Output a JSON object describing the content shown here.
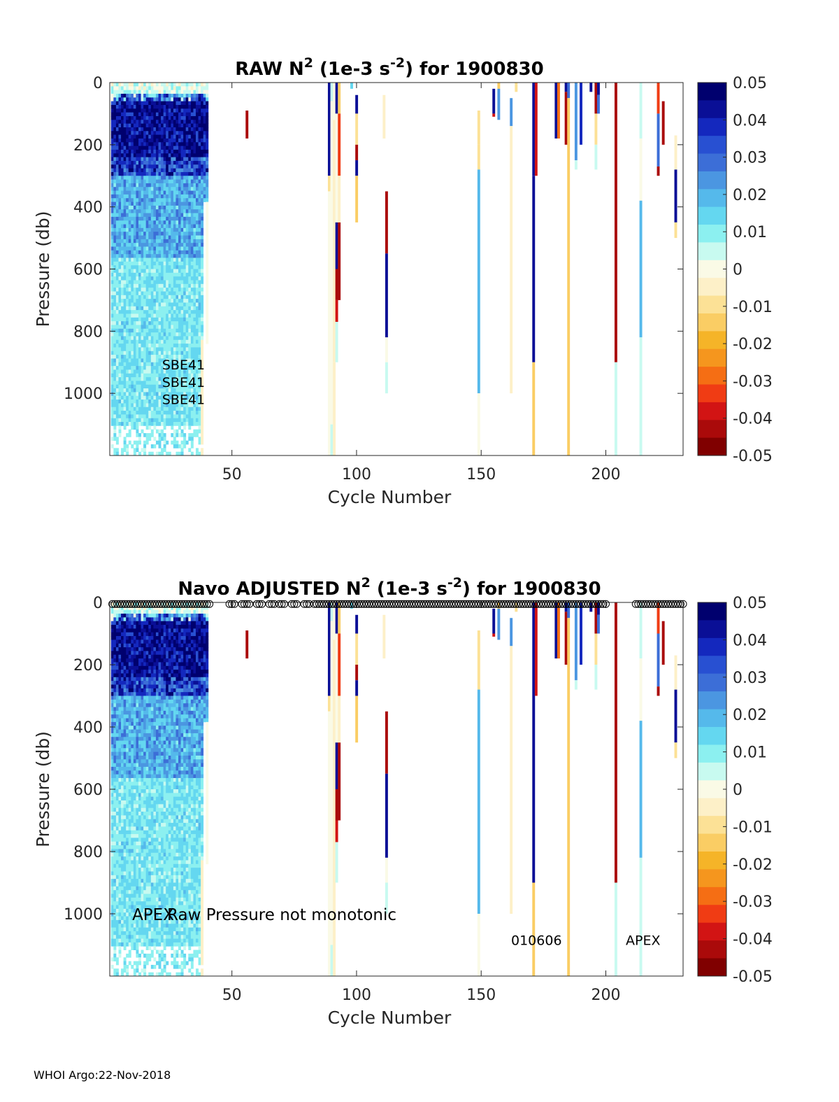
{
  "chart_data": [
    {
      "type": "heatmap",
      "title": {
        "prefix": "RAW N",
        "sup1": "2",
        "mid": " (1e-3 s",
        "sup2": "-2",
        "suffix": ") for 1900830"
      },
      "xlabel": "Cycle Number",
      "ylabel": "Pressure (db)",
      "xlim": [
        1,
        231
      ],
      "ylim": [
        1200,
        0
      ],
      "xticks": [
        "50",
        "100",
        "150",
        "200"
      ],
      "yticks": [
        "0",
        "200",
        "400",
        "600",
        "800",
        "1000"
      ],
      "colorbar": {
        "ticks": [
          "0.05",
          "0.04",
          "0.03",
          "0.02",
          "0.01",
          "0",
          "-0.01",
          "-0.02",
          "-0.03",
          "-0.04",
          "-0.05"
        ],
        "clim": [
          -0.05,
          0.05
        ]
      },
      "annotations": [
        {
          "text": "SBE41",
          "cycle": 22,
          "pressure": 905,
          "size": 19
        },
        {
          "text": "SBE41",
          "cycle": 22,
          "pressure": 961,
          "size": 19
        },
        {
          "text": "SBE41",
          "cycle": 22,
          "pressure": 1016,
          "size": 19
        }
      ],
      "markers": null
    },
    {
      "type": "heatmap",
      "title": {
        "prefix": "Navo  ADJUSTED N",
        "sup1": "2",
        "mid": " (1e-3 s",
        "sup2": "-2",
        "suffix": ") for 1900830"
      },
      "xlabel": "Cycle Number",
      "ylabel": "Pressure (db)",
      "xlim": [
        1,
        231
      ],
      "ylim": [
        1200,
        0
      ],
      "xticks": [
        "50",
        "100",
        "150",
        "200"
      ],
      "yticks": [
        "0",
        "200",
        "400",
        "600",
        "800",
        "1000"
      ],
      "colorbar": {
        "ticks": [
          "0.05",
          "0.04",
          "0.03",
          "0.02",
          "0.01",
          "0",
          "-0.01",
          "-0.02",
          "-0.03",
          "-0.04",
          "-0.05"
        ],
        "clim": [
          -0.05,
          0.05
        ]
      },
      "annotations": [
        {
          "text": "APEX",
          "cycle": 10,
          "pressure": 1002,
          "size": 23
        },
        {
          "text": "Raw Pressure not monotonic",
          "cycle": 24,
          "pressure": 1002,
          "size": 23
        },
        {
          "text": "010606",
          "cycle": 162,
          "pressure": 1082,
          "size": 19
        },
        {
          "text": "APEX",
          "cycle": 208,
          "pressure": 1082,
          "size": 19
        }
      ],
      "markers": {
        "pressure": 5,
        "cycles_note": "open circles at most cycles along top"
      }
    }
  ],
  "footer": "WHOI Argo:22-Nov-2018"
}
